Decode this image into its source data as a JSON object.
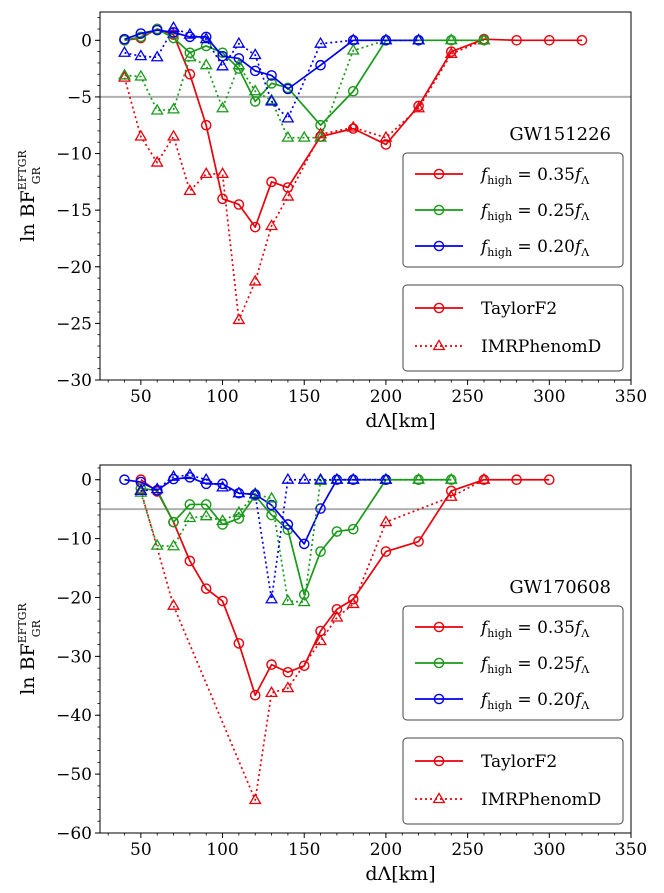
{
  "legend_lines": {
    "x_symbol": "f",
    "x_sub": "high",
    "eq": "=",
    "items": [
      {
        "coef": "0.35",
        "color": "#e8000b"
      },
      {
        "coef": "0.25",
        "color": "#1a9a1a"
      },
      {
        "coef": "0.20",
        "color": "#0000ee"
      }
    ],
    "lambda_sub": "Λ"
  },
  "legend_styles": [
    {
      "label": "TaylorF2",
      "style": "solid",
      "marker": "circle"
    },
    {
      "label": "IMRPhenomD",
      "style": "dotted",
      "marker": "triangle"
    }
  ],
  "colors": {
    "f035": "#e8000b",
    "f025": "#1a9a1a",
    "f020": "#0000ee",
    "ref": "#b0b0b0"
  },
  "chart_data": [
    {
      "type": "line",
      "annotation": "GW151226",
      "xlabel": "dΛ[km]",
      "ylabel": "ln BF",
      "ylabel_sup": "EFTGR",
      "ylabel_sub": "GR",
      "xlim": [
        25,
        350
      ],
      "ylim": [
        -30,
        2.5
      ],
      "xticks": [
        50,
        100,
        150,
        200,
        250,
        300,
        350
      ],
      "yticks": [
        0,
        -5,
        -10,
        -15,
        -20,
        -25,
        -30
      ],
      "hline": -5,
      "series": [
        {
          "name": "f_high = 0.35 f_Λ, TaylorF2",
          "color": "#e8000b",
          "style": "solid",
          "marker": "circle",
          "x": [
            40,
            50,
            60,
            70,
            80,
            90,
            100,
            110,
            120,
            130,
            140,
            160,
            180,
            200,
            220,
            240,
            260,
            280,
            300,
            320
          ],
          "y": [
            0,
            0.2,
            1,
            0.5,
            -3,
            -7.5,
            -14,
            -14.5,
            -16.5,
            -12.5,
            -13,
            -8.5,
            -7.8,
            -9.2,
            -5.8,
            -1,
            0.1,
            0,
            0,
            0
          ]
        },
        {
          "name": "f_high = 0.25 f_Λ, TaylorF2",
          "color": "#1a9a1a",
          "style": "solid",
          "marker": "circle",
          "x": [
            40,
            50,
            60,
            70,
            80,
            90,
            100,
            110,
            120,
            130,
            140,
            160,
            180,
            200,
            220,
            240,
            260
          ],
          "y": [
            0,
            0.3,
            1,
            0.2,
            -1.1,
            -0.5,
            -1.1,
            -2.5,
            -5.4,
            -3.8,
            -4.2,
            -7.5,
            -4.5,
            0,
            0,
            0,
            0
          ]
        },
        {
          "name": "f_high = 0.20 f_Λ, TaylorF2",
          "color": "#0000ee",
          "style": "solid",
          "marker": "circle",
          "x": [
            40,
            50,
            60,
            70,
            80,
            90,
            100,
            110,
            120,
            130,
            140,
            160,
            180,
            200,
            220
          ],
          "y": [
            0.1,
            0.6,
            0.9,
            0.7,
            0.3,
            0.3,
            -1.4,
            -1.6,
            -2.7,
            -3.1,
            -4.3,
            -2.2,
            0,
            0,
            0
          ]
        },
        {
          "name": "f_high = 0.35 f_Λ, IMRPhenomD",
          "color": "#e8000b",
          "style": "dotted",
          "marker": "triangle",
          "x": [
            40,
            50,
            60,
            70,
            80,
            90,
            100,
            110,
            120,
            130,
            140,
            160,
            180,
            200,
            220,
            240,
            260
          ],
          "y": [
            -3.3,
            -8.5,
            -10.8,
            -8.5,
            -13.3,
            -11.8,
            -11.8,
            -24.7,
            -21.3,
            -16.4,
            -13.8,
            -8.3,
            -7.7,
            -8.6,
            -6,
            -1.2,
            0
          ]
        },
        {
          "name": "f_high = 0.25 f_Λ, IMRPhenomD",
          "color": "#1a9a1a",
          "style": "dotted",
          "marker": "triangle",
          "x": [
            40,
            50,
            60,
            70,
            80,
            90,
            100,
            110,
            120,
            130,
            140,
            150,
            160,
            180,
            200,
            220,
            240,
            260
          ],
          "y": [
            -3.1,
            -3.2,
            -6.2,
            -6.1,
            -1.5,
            -2.2,
            -6,
            -2.2,
            -4.5,
            -5.3,
            -8.6,
            -8.6,
            -8.6,
            -0.9,
            0,
            0,
            0,
            0
          ]
        },
        {
          "name": "f_high = 0.20 f_Λ, IMRPhenomD",
          "color": "#0000ee",
          "style": "dotted",
          "marker": "triangle",
          "x": [
            40,
            50,
            60,
            70,
            80,
            90,
            100,
            110,
            120,
            130,
            140,
            160,
            180,
            200,
            220
          ],
          "y": [
            -1.1,
            -1.4,
            -1.5,
            1.1,
            0.5,
            0.1,
            -2.3,
            -0.3,
            -1.3,
            -5.4,
            -6.9,
            -0.3,
            0,
            0,
            0
          ]
        }
      ]
    },
    {
      "type": "line",
      "annotation": "GW170608",
      "xlabel": "dΛ[km]",
      "ylabel": "ln BF",
      "ylabel_sup": "EFTGR",
      "ylabel_sub": "GR",
      "xlim": [
        25,
        350
      ],
      "ylim": [
        -60,
        2.5
      ],
      "xticks": [
        50,
        100,
        150,
        200,
        250,
        300,
        350
      ],
      "yticks": [
        0,
        -10,
        -20,
        -30,
        -40,
        -50,
        -60
      ],
      "hline": -5,
      "series": [
        {
          "name": "f_high = 0.35 f_Λ, TaylorF2",
          "color": "#e8000b",
          "style": "solid",
          "marker": "circle",
          "x": [
            50,
            60,
            70,
            80,
            90,
            100,
            110,
            120,
            130,
            140,
            150,
            160,
            170,
            180,
            200,
            220,
            240,
            260,
            280,
            300
          ],
          "y": [
            0,
            -2,
            -7.2,
            -13.8,
            -18.5,
            -20.6,
            -27.8,
            -36.6,
            -31.4,
            -32.7,
            -31.6,
            -25.7,
            -22,
            -20.3,
            -12.2,
            -10.5,
            -1.9,
            0,
            0,
            0
          ]
        },
        {
          "name": "f_high = 0.25 f_Λ, TaylorF2",
          "color": "#1a9a1a",
          "style": "solid",
          "marker": "circle",
          "x": [
            50,
            60,
            70,
            80,
            90,
            100,
            110,
            120,
            130,
            140,
            150,
            160,
            170,
            180,
            200,
            220,
            240
          ],
          "y": [
            -1.5,
            -1.8,
            -7.2,
            -4.2,
            -4.2,
            -7.6,
            -6.6,
            -2.7,
            -6,
            -8.5,
            -19.5,
            -12.2,
            -8.8,
            -8.4,
            0,
            0,
            0
          ]
        },
        {
          "name": "f_high = 0.20 f_Λ, TaylorF2",
          "color": "#0000ee",
          "style": "solid",
          "marker": "circle",
          "x": [
            40,
            50,
            60,
            70,
            80,
            90,
            100,
            110,
            120,
            130,
            140,
            150,
            160,
            170,
            180,
            200
          ],
          "y": [
            0,
            -0.4,
            -1.8,
            0.1,
            0.4,
            -0.7,
            -0.7,
            -2.3,
            -2.5,
            -4.3,
            -7.6,
            -10.9,
            -4.9,
            0,
            0,
            0
          ]
        },
        {
          "name": "f_high = 0.35 f_Λ, IMRPhenomD",
          "color": "#e8000b",
          "style": "dotted",
          "marker": "triangle",
          "x": [
            50,
            70,
            120,
            130,
            140,
            160,
            170,
            180,
            200,
            240,
            260
          ],
          "y": [
            -1.8,
            -21.4,
            -54.4,
            -36.2,
            -35.4,
            -27.4,
            -23.4,
            -21.1,
            -7.2,
            -2.9,
            0
          ]
        },
        {
          "name": "f_high = 0.25 f_Λ, IMRPhenomD",
          "color": "#1a9a1a",
          "style": "dotted",
          "marker": "triangle",
          "x": [
            50,
            60,
            70,
            80,
            90,
            100,
            110,
            120,
            130,
            140,
            150,
            160,
            170,
            180,
            200,
            220,
            240
          ],
          "y": [
            -2.2,
            -11.2,
            -11.3,
            -6.5,
            -6.2,
            -7,
            -5.6,
            -2.4,
            -3.2,
            -20.6,
            -20.8,
            -0.2,
            0,
            0,
            0,
            0,
            0
          ]
        },
        {
          "name": "f_high = 0.20 f_Λ, IMRPhenomD",
          "color": "#0000ee",
          "style": "dotted",
          "marker": "triangle",
          "x": [
            50,
            60,
            70,
            80,
            90,
            100,
            110,
            120,
            130,
            140,
            150,
            160,
            170,
            180,
            200
          ],
          "y": [
            -1.9,
            -1.6,
            0.5,
            0.8,
            0,
            -1.3,
            -2.3,
            -2.5,
            -20.3,
            0,
            0,
            0,
            0,
            0,
            0
          ]
        }
      ]
    }
  ]
}
